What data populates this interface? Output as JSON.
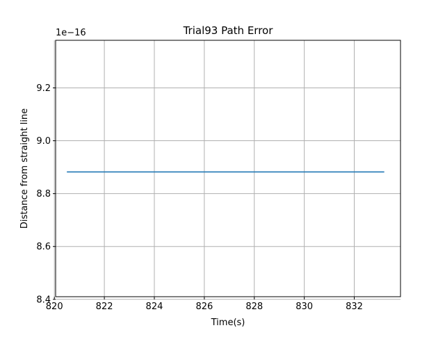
{
  "chart_data": {
    "type": "line",
    "title": "Trial93 Path Error",
    "xlabel": "Time(s)",
    "ylabel": "Distance from straight line",
    "y_offset_label": "1e−16",
    "xlim": [
      820.05,
      833.85
    ],
    "ylim": [
      8.41,
      9.38
    ],
    "x_ticks": [
      820,
      822,
      824,
      826,
      828,
      830,
      832
    ],
    "y_ticks": [
      8.4,
      8.6,
      8.8,
      9.0,
      9.2
    ],
    "x_tick_labels": [
      "820",
      "822",
      "824",
      "826",
      "828",
      "830",
      "832"
    ],
    "y_tick_labels": [
      "8.4",
      "8.6",
      "8.8",
      "9.0",
      "9.2"
    ],
    "grid": true,
    "series": [
      {
        "x": [
          820.5,
          833.2
        ],
        "y": [
          8.882,
          8.882
        ],
        "color": "#1f77b4"
      }
    ]
  }
}
